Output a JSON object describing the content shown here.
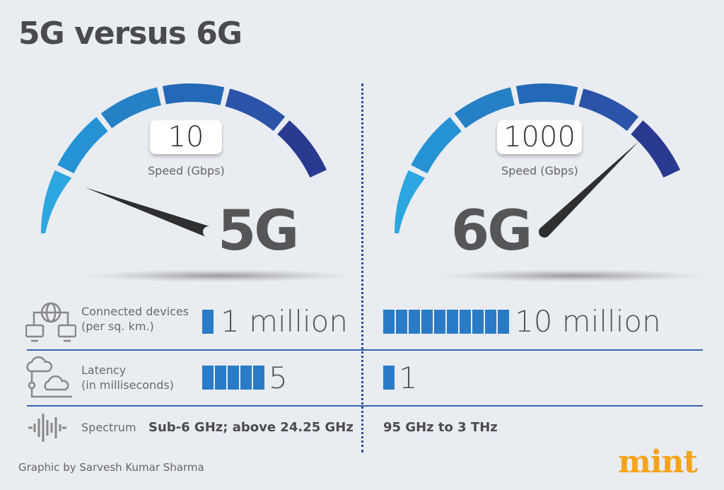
{
  "title": "5G versus 6G",
  "speed_label": "Speed (Gbps)",
  "gauges": [
    {
      "name": "5G",
      "speed": "10",
      "needle_fraction": 0.05
    },
    {
      "name": "6G",
      "speed": "1000",
      "needle_fraction": 0.95
    }
  ],
  "gauge_colors": [
    "#2ca6df",
    "#2592d4",
    "#2680c6",
    "#2469b8",
    "#2b53a8",
    "#2a3a90"
  ],
  "rows": [
    {
      "label_line1": "Connected devices",
      "label_line2": "(per sq. km.)",
      "icon": "network-globe-icon",
      "g5": "1 million",
      "g5_blocks": 1,
      "g6": "10 million",
      "g6_blocks": 10
    },
    {
      "label_line1": "Latency",
      "label_line2": "(in milliseconds)",
      "icon": "cloud-clock-icon",
      "g5": "5",
      "g5_blocks": 5,
      "g6": "1",
      "g6_blocks": 1
    },
    {
      "label_line1": "Spectrum",
      "icon": "sound-wave-icon",
      "g5": "Sub-6 GHz; above 24.25 GHz",
      "g6": "95 GHz to 3 THz"
    }
  ],
  "bar_color": "#2a7bc6",
  "credit": "Graphic by Sarvesh Kumar Sharma",
  "logo": "mint"
}
